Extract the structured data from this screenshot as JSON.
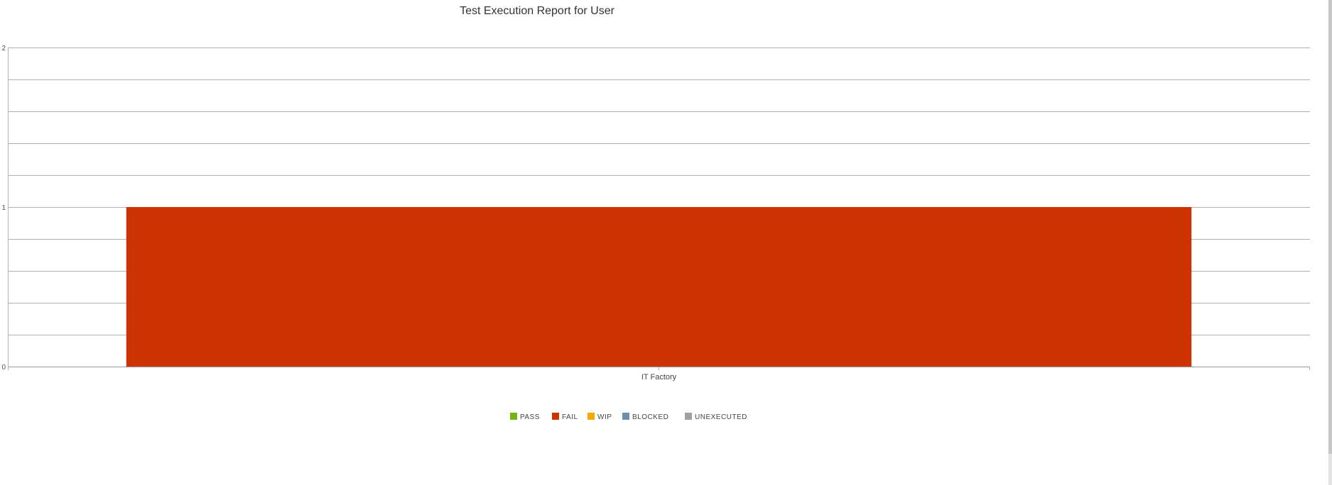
{
  "chart_data": {
    "type": "bar",
    "title": "Test Execution Report for User",
    "categories": [
      "IT Factory"
    ],
    "series": [
      {
        "name": "PASS",
        "values": [
          0
        ],
        "color": "#72b310"
      },
      {
        "name": "FAIL",
        "values": [
          1
        ],
        "color": "#cc3300"
      },
      {
        "name": "WIP",
        "values": [
          0
        ],
        "color": "#f6a800"
      },
      {
        "name": "BLOCKED",
        "values": [
          0
        ],
        "color": "#6d8fae"
      },
      {
        "name": "UNEXECUTED",
        "values": [
          0
        ],
        "color": "#a0a0a0"
      }
    ],
    "ylim": [
      0,
      2
    ],
    "yticks": [
      0,
      1,
      2
    ],
    "minor_gridlines_per_unit": 5,
    "grid": true,
    "legend": "bottom-center",
    "xlabel": "",
    "ylabel": ""
  }
}
